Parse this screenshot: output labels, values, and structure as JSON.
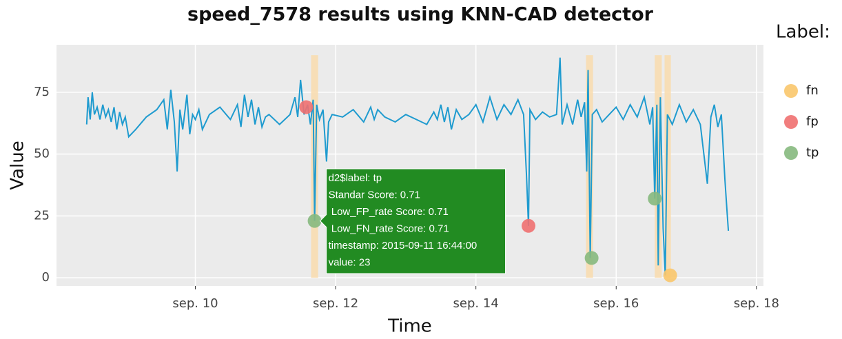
{
  "chart_data": {
    "type": "line",
    "title": "speed_7578 results using KNN-CAD detector",
    "x_label": "Time",
    "y_label": "Value",
    "legend_title": "Label:",
    "xlim": [
      8.02,
      18.1
    ],
    "ylim": [
      -3.3,
      94.2
    ],
    "xticks": [
      {
        "value": 10,
        "label": "sep. 10"
      },
      {
        "value": 12,
        "label": "sep. 12"
      },
      {
        "value": 14,
        "label": "sep. 14"
      },
      {
        "value": 16,
        "label": "sep. 16"
      },
      {
        "value": 18,
        "label": "sep. 18"
      }
    ],
    "yticks": [
      0,
      25,
      50,
      75
    ],
    "grid": true,
    "line": {
      "color": "#1f9bcf",
      "x": [
        8.45,
        8.47,
        8.5,
        8.53,
        8.56,
        8.6,
        8.64,
        8.68,
        8.72,
        8.76,
        8.8,
        8.84,
        8.88,
        8.92,
        8.96,
        9.0,
        9.05,
        9.15,
        9.3,
        9.45,
        9.55,
        9.6,
        9.65,
        9.7,
        9.74,
        9.78,
        9.82,
        9.88,
        9.92,
        9.96,
        10.0,
        10.05,
        10.1,
        10.2,
        10.35,
        10.5,
        10.6,
        10.65,
        10.7,
        10.75,
        10.8,
        10.85,
        10.9,
        10.95,
        11.0,
        11.05,
        11.2,
        11.35,
        11.42,
        11.46,
        11.5,
        11.55,
        11.6,
        11.64,
        11.68,
        11.7,
        11.73,
        11.77,
        11.82,
        11.87,
        11.9,
        11.95,
        12.1,
        12.25,
        12.4,
        12.5,
        12.55,
        12.6,
        12.7,
        12.85,
        13.0,
        13.15,
        13.3,
        13.4,
        13.45,
        13.5,
        13.55,
        13.6,
        13.65,
        13.72,
        13.8,
        13.9,
        14.0,
        14.1,
        14.2,
        14.3,
        14.4,
        14.5,
        14.6,
        14.68,
        14.72,
        14.75,
        14.77,
        14.85,
        14.95,
        15.05,
        15.15,
        15.2,
        15.23,
        15.3,
        15.38,
        15.45,
        15.5,
        15.55,
        15.58,
        15.6,
        15.63,
        15.66,
        15.72,
        15.8,
        15.9,
        16.0,
        16.1,
        16.2,
        16.3,
        16.4,
        16.48,
        16.52,
        16.55,
        16.58,
        16.6,
        16.63,
        16.67,
        16.7,
        16.73,
        16.8,
        16.9,
        17.0,
        17.1,
        17.2,
        17.3,
        17.35,
        17.4,
        17.45,
        17.5,
        17.55,
        17.58,
        17.6
      ],
      "values": [
        62,
        73,
        64,
        75,
        66,
        69,
        64,
        70,
        65,
        68,
        63,
        69,
        60,
        67,
        62,
        65,
        57,
        60,
        65,
        68,
        72,
        60,
        76,
        63,
        43,
        68,
        60,
        74,
        58,
        66,
        64,
        68,
        60,
        66,
        69,
        64,
        70,
        61,
        74,
        65,
        72,
        62,
        69,
        61,
        65,
        66,
        62,
        66,
        73,
        65,
        80,
        66,
        70,
        62,
        72,
        23,
        70,
        64,
        68,
        47,
        63,
        66,
        65,
        68,
        63,
        69,
        64,
        68,
        65,
        63,
        66,
        64,
        62,
        67,
        64,
        70,
        63,
        69,
        60,
        68,
        64,
        66,
        70,
        63,
        73,
        64,
        70,
        66,
        72,
        66,
        42,
        21,
        68,
        64,
        67,
        65,
        66,
        89,
        62,
        70,
        62,
        72,
        65,
        71,
        43,
        84,
        8,
        66,
        68,
        63,
        66,
        69,
        64,
        70,
        65,
        73,
        62,
        69,
        32,
        70,
        5,
        73,
        20,
        1,
        66,
        62,
        70,
        63,
        68,
        62,
        38,
        65,
        70,
        61,
        66,
        40,
        27,
        19
      ]
    },
    "windows": [
      {
        "x": [
          11.65,
          11.75
        ],
        "y": [
          0,
          90
        ]
      },
      {
        "x": [
          15.57,
          15.67
        ],
        "y": [
          0,
          90
        ]
      },
      {
        "x": [
          16.55,
          16.65
        ],
        "y": [
          0,
          90
        ]
      },
      {
        "x": [
          16.69,
          16.78
        ],
        "y": [
          0,
          90
        ]
      }
    ],
    "window_color": "#f9dcae",
    "series": [
      {
        "name": "fn",
        "color": "#f9c76b",
        "x": [
          16.77
        ],
        "values": [
          1
        ]
      },
      {
        "name": "fp",
        "color": "#f07070",
        "x": [
          11.58,
          14.75
        ],
        "values": [
          69,
          21
        ]
      },
      {
        "name": "tp",
        "color": "#86b97e",
        "x": [
          11.7,
          15.65,
          16.55
        ],
        "values": [
          23,
          8,
          32
        ]
      }
    ],
    "tooltip": {
      "color": "#228b22",
      "lines": [
        "d2$label: tp",
        "Standar Score: 0.71",
        " Low_FP_rate Score: 0.71",
        " Low_FN_rate Score: 0.71",
        "timestamp: 2015-09-11 16:44:00",
        "value: 23"
      ]
    }
  }
}
